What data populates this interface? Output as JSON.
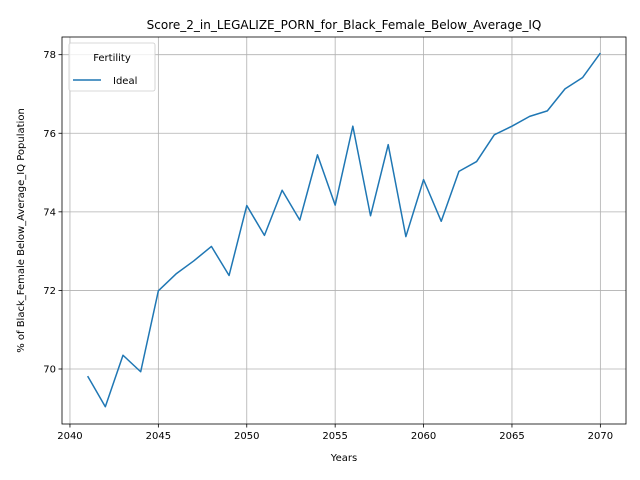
{
  "chart_data": {
    "type": "line",
    "title": "Score_2_in_LEGALIZE_PORN_for_Black_Female_Below_Average_IQ",
    "xlabel": "Years",
    "ylabel": "% of Black_Female Below_Average_IQ Population",
    "xlim": [
      2039.55,
      2071.45
    ],
    "ylim": [
      68.6,
      78.45
    ],
    "xticks": [
      2040,
      2045,
      2050,
      2055,
      2060,
      2065,
      2070
    ],
    "yticks": [
      70,
      72,
      74,
      76,
      78
    ],
    "grid": true,
    "legend": {
      "title": "Fertility",
      "placement": "top-left"
    },
    "series": [
      {
        "name": "Ideal",
        "color": "#1f77b4",
        "x": [
          2041,
          2042,
          2043,
          2044,
          2045,
          2046,
          2047,
          2048,
          2049,
          2050,
          2051,
          2052,
          2053,
          2054,
          2055,
          2056,
          2057,
          2058,
          2059,
          2060,
          2061,
          2062,
          2063,
          2064,
          2065,
          2066,
          2067,
          2068,
          2069,
          2070
        ],
        "values": [
          69.82,
          69.04,
          70.35,
          69.93,
          71.99,
          72.42,
          72.75,
          73.12,
          72.38,
          74.16,
          73.4,
          74.55,
          73.79,
          75.45,
          74.17,
          76.18,
          73.9,
          75.71,
          73.37,
          74.82,
          73.76,
          75.03,
          75.28,
          75.96,
          76.18,
          76.43,
          76.57,
          77.13,
          77.42,
          78.04
        ]
      }
    ]
  }
}
